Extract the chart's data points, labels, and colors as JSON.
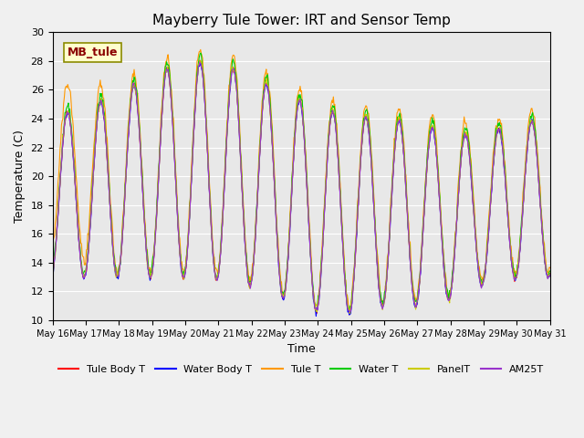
{
  "title": "Mayberry Tule Tower: IRT and Sensor Temp",
  "xlabel": "Time",
  "ylabel": "Temperature (C)",
  "ylim": [
    10,
    30
  ],
  "background_color": "#e8e8e8",
  "plot_bg": "#e8e8e8",
  "legend_label": "MB_tule",
  "series_colors": {
    "Tule Body T": "#ff0000",
    "Water Body T": "#0000ff",
    "Tule T": "#ff9900",
    "Water T": "#00cc00",
    "PanelT": "#cccc00",
    "AM25T": "#9933cc"
  },
  "xtick_positions": [
    0,
    1,
    2,
    3,
    4,
    5,
    6,
    7,
    8,
    9,
    10,
    11,
    12,
    13,
    14,
    15
  ],
  "xtick_labels": [
    "May 16",
    "May 17",
    "May 18",
    "May 19",
    "May 20",
    "May 21",
    "May 22",
    "May 23",
    "May 24",
    "May 25",
    "May 26",
    "May 27",
    "May 28",
    "May 29",
    "May 30",
    "May 31"
  ],
  "ytick_labels": [
    10,
    12,
    14,
    16,
    18,
    20,
    22,
    24,
    26,
    28,
    30
  ],
  "n_days": 15,
  "points_per_day": 48
}
